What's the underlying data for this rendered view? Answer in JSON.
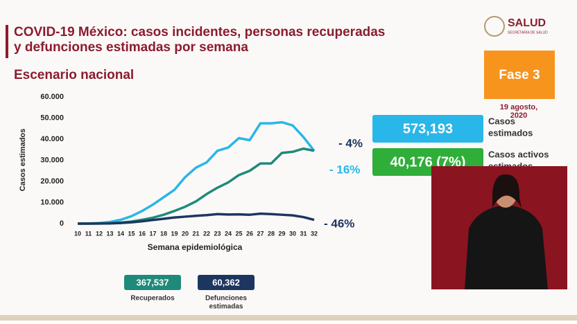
{
  "slide": {
    "title": [
      "COVID-19 México: casos incidentes, personas recuperadas",
      "y defunciones estimadas por semana"
    ],
    "subtitle": "Escenario nacional",
    "logo": "SALUD",
    "logo_sub": "SECRETARÍA DE SALUD",
    "phase": "Fase 3",
    "date": [
      "19 agosto,",
      "2020"
    ],
    "boxes": [
      {
        "value": "573,193",
        "label": [
          "Casos",
          "estimados"
        ],
        "color": "#29b6e8"
      },
      {
        "value": "40,176 (7%)",
        "label": [
          "Casos activos",
          "estimados"
        ],
        "color": "#2fae3a"
      },
      {
        "value": "367,537",
        "label": [
          "Recuperados"
        ],
        "color": "#1f8a7a"
      },
      {
        "value": "60,362",
        "label": [
          "Defunciones",
          "estimadas"
        ],
        "color": "#1c3660"
      }
    ]
  },
  "chart_data": {
    "type": "line",
    "y_label": "Casos estimados",
    "x_label": "Semana epidemiológica",
    "categories": [
      "10",
      "11",
      "12",
      "13",
      "14",
      "15",
      "16",
      "17",
      "18",
      "19",
      "20",
      "21",
      "22",
      "23",
      "24",
      "25",
      "26",
      "27",
      "28",
      "29",
      "30",
      "31",
      "32"
    ],
    "series": [
      {
        "color": "#29b6e8",
        "values": [
          0,
          100,
          300,
          800,
          1800,
          3500,
          6000,
          9000,
          12500,
          16000,
          22000,
          26500,
          29000,
          34500,
          36000,
          40500,
          39500,
          47500,
          47500,
          48000,
          46500,
          41000,
          34500
        ]
      },
      {
        "color": "#1f8a7a",
        "values": [
          0,
          0,
          50,
          200,
          500,
          1000,
          1800,
          2800,
          4200,
          6000,
          8000,
          10500,
          14000,
          17000,
          19500,
          23000,
          25000,
          28500,
          28500,
          33500,
          34000,
          35500,
          34500
        ]
      },
      {
        "color": "#1c3660",
        "values": [
          0,
          0,
          50,
          100,
          300,
          600,
          1100,
          1700,
          2300,
          2900,
          3300,
          3700,
          4000,
          4500,
          4300,
          4400,
          4200,
          4700,
          4500,
          4200,
          3900,
          3100,
          1800
        ]
      }
    ],
    "annotations": [
      {
        "text": "- 4%",
        "color": "#1c3660"
      },
      {
        "text": "- 16%",
        "color": "#29b6e8"
      },
      {
        "text": "- 46%",
        "color": "#1c3660"
      }
    ],
    "ylim": [
      0,
      60000
    ],
    "yticks": [
      0,
      {
        "value": 10000,
        "label": "10.000"
      },
      {
        "value": 20000,
        "label": "20.000"
      },
      {
        "value": 30000,
        "label": "30.000"
      },
      {
        "value": 40000,
        "label": "40.000"
      },
      {
        "value": 50000,
        "label": "50.000"
      },
      {
        "value": 60000,
        "label": "60.000"
      }
    ]
  }
}
